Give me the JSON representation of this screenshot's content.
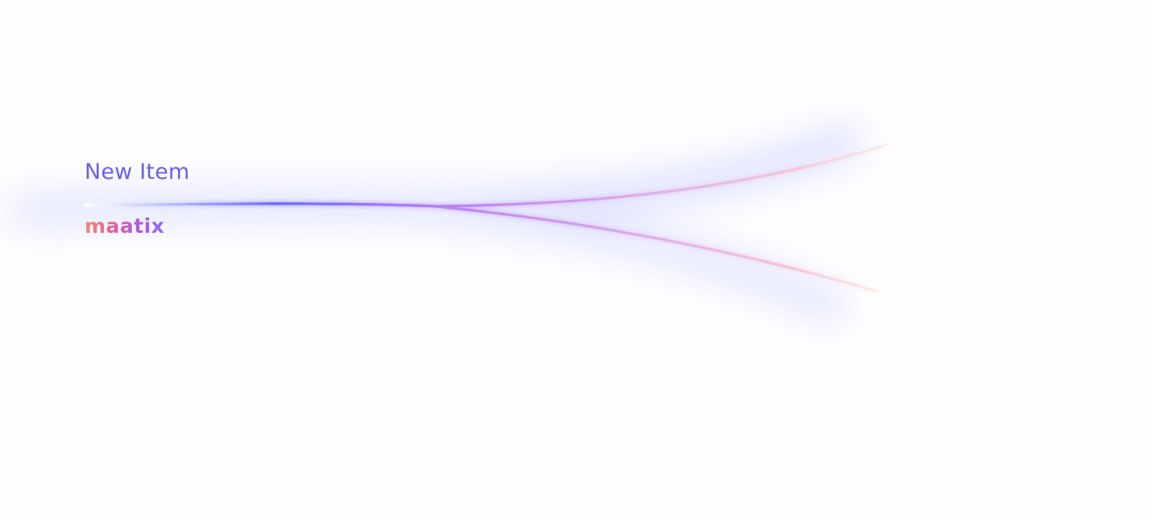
{
  "title": "New Item",
  "brand": {
    "name": "maatix"
  },
  "graphic": {
    "description_icon": "split-lines-graphic",
    "colors": {
      "start": "#ffffff",
      "blue": "#6a6cf5",
      "purple": "#b47cf5",
      "pink": "#f4c4d8",
      "peach": "#fbe2d8",
      "glow": "#c8cbff"
    }
  }
}
